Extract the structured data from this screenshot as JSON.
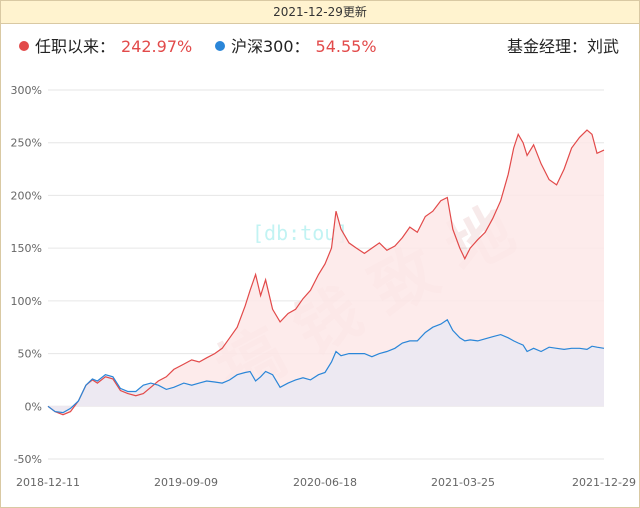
{
  "header": {
    "update_text": "2021-12-29更新"
  },
  "legend": {
    "series1_label": "任职以来：",
    "series1_value": "242.97%",
    "series2_label": "沪深300：",
    "series2_value": "54.55%",
    "manager_text": "基金经理：刘武"
  },
  "watermark": {
    "main": "搞 钱 致 地",
    "sub": "[db:tou]"
  },
  "colors": {
    "manager": "#e24a4a",
    "index": "#2a86d8",
    "manager_fill": "#fde8e8",
    "index_fill": "#ece9f2"
  },
  "chart_data": {
    "type": "line",
    "y_tick_labels": [
      "300%",
      "250%",
      "200%",
      "150%",
      "100%",
      "50%",
      "0%",
      "-50%"
    ],
    "y_ticks": [
      300,
      250,
      200,
      150,
      100,
      50,
      0,
      -50
    ],
    "ylim": [
      -50,
      300
    ],
    "x_tick_labels": [
      "2018-12-11",
      "2019-09-09",
      "2020-06-18",
      "2021-03-25",
      "2021-12-29"
    ],
    "grid": true,
    "series": [
      {
        "name": "任职以来",
        "color": "#e24a4a",
        "points": [
          [
            "2018-12-11",
            0
          ],
          [
            "2018-12-25",
            -5
          ],
          [
            "2019-01-10",
            -8
          ],
          [
            "2019-01-25",
            -5
          ],
          [
            "2019-02-10",
            5
          ],
          [
            "2019-02-25",
            20
          ],
          [
            "2019-03-10",
            25
          ],
          [
            "2019-03-20",
            22
          ],
          [
            "2019-04-05",
            28
          ],
          [
            "2019-04-20",
            26
          ],
          [
            "2019-05-05",
            15
          ],
          [
            "2019-05-20",
            12
          ],
          [
            "2019-06-05",
            10
          ],
          [
            "2019-06-20",
            12
          ],
          [
            "2019-07-05",
            18
          ],
          [
            "2019-07-20",
            24
          ],
          [
            "2019-08-05",
            28
          ],
          [
            "2019-08-20",
            35
          ],
          [
            "2019-09-09",
            40
          ],
          [
            "2019-09-25",
            44
          ],
          [
            "2019-10-10",
            42
          ],
          [
            "2019-10-25",
            46
          ],
          [
            "2019-11-10",
            50
          ],
          [
            "2019-11-25",
            55
          ],
          [
            "2019-12-10",
            65
          ],
          [
            "2019-12-25",
            75
          ],
          [
            "2020-01-10",
            95
          ],
          [
            "2020-01-20",
            110
          ],
          [
            "2020-01-31",
            125
          ],
          [
            "2020-02-10",
            105
          ],
          [
            "2020-02-20",
            120
          ],
          [
            "2020-03-05",
            92
          ],
          [
            "2020-03-20",
            80
          ],
          [
            "2020-04-05",
            88
          ],
          [
            "2020-04-20",
            92
          ],
          [
            "2020-05-05",
            102
          ],
          [
            "2020-05-20",
            110
          ],
          [
            "2020-06-05",
            125
          ],
          [
            "2020-06-18",
            135
          ],
          [
            "2020-07-01",
            150
          ],
          [
            "2020-07-10",
            185
          ],
          [
            "2020-07-20",
            168
          ],
          [
            "2020-08-05",
            155
          ],
          [
            "2020-08-20",
            150
          ],
          [
            "2020-09-05",
            145
          ],
          [
            "2020-09-20",
            150
          ],
          [
            "2020-10-05",
            155
          ],
          [
            "2020-10-20",
            148
          ],
          [
            "2020-11-05",
            152
          ],
          [
            "2020-11-20",
            160
          ],
          [
            "2020-12-05",
            170
          ],
          [
            "2020-12-20",
            165
          ],
          [
            "2021-01-05",
            180
          ],
          [
            "2021-01-20",
            185
          ],
          [
            "2021-02-05",
            195
          ],
          [
            "2021-02-18",
            198
          ],
          [
            "2021-03-01",
            168
          ],
          [
            "2021-03-15",
            150
          ],
          [
            "2021-03-25",
            140
          ],
          [
            "2021-04-05",
            150
          ],
          [
            "2021-04-20",
            158
          ],
          [
            "2021-05-05",
            165
          ],
          [
            "2021-05-20",
            178
          ],
          [
            "2021-06-05",
            195
          ],
          [
            "2021-06-20",
            220
          ],
          [
            "2021-07-01",
            245
          ],
          [
            "2021-07-10",
            258
          ],
          [
            "2021-07-20",
            250
          ],
          [
            "2021-07-28",
            238
          ],
          [
            "2021-08-10",
            248
          ],
          [
            "2021-08-25",
            230
          ],
          [
            "2021-09-10",
            215
          ],
          [
            "2021-09-25",
            210
          ],
          [
            "2021-10-10",
            225
          ],
          [
            "2021-10-25",
            245
          ],
          [
            "2021-11-10",
            255
          ],
          [
            "2021-11-25",
            262
          ],
          [
            "2021-12-05",
            258
          ],
          [
            "2021-12-15",
            240
          ],
          [
            "2021-12-29",
            243
          ]
        ]
      },
      {
        "name": "沪深300",
        "color": "#2a86d8",
        "points": [
          [
            "2018-12-11",
            0
          ],
          [
            "2018-12-25",
            -5
          ],
          [
            "2019-01-10",
            -6
          ],
          [
            "2019-01-25",
            -2
          ],
          [
            "2019-02-10",
            5
          ],
          [
            "2019-02-25",
            20
          ],
          [
            "2019-03-10",
            26
          ],
          [
            "2019-03-20",
            24
          ],
          [
            "2019-04-05",
            30
          ],
          [
            "2019-04-20",
            28
          ],
          [
            "2019-05-05",
            17
          ],
          [
            "2019-05-20",
            14
          ],
          [
            "2019-06-05",
            14
          ],
          [
            "2019-06-20",
            20
          ],
          [
            "2019-07-05",
            22
          ],
          [
            "2019-07-20",
            20
          ],
          [
            "2019-08-05",
            16
          ],
          [
            "2019-08-20",
            18
          ],
          [
            "2019-09-09",
            22
          ],
          [
            "2019-09-25",
            20
          ],
          [
            "2019-10-10",
            22
          ],
          [
            "2019-10-25",
            24
          ],
          [
            "2019-11-10",
            23
          ],
          [
            "2019-11-25",
            22
          ],
          [
            "2019-12-10",
            25
          ],
          [
            "2019-12-25",
            30
          ],
          [
            "2020-01-10",
            32
          ],
          [
            "2020-01-20",
            33
          ],
          [
            "2020-01-31",
            24
          ],
          [
            "2020-02-10",
            28
          ],
          [
            "2020-02-20",
            33
          ],
          [
            "2020-03-05",
            30
          ],
          [
            "2020-03-20",
            18
          ],
          [
            "2020-04-05",
            22
          ],
          [
            "2020-04-20",
            25
          ],
          [
            "2020-05-05",
            27
          ],
          [
            "2020-05-20",
            25
          ],
          [
            "2020-06-05",
            30
          ],
          [
            "2020-06-18",
            32
          ],
          [
            "2020-07-01",
            42
          ],
          [
            "2020-07-10",
            52
          ],
          [
            "2020-07-20",
            48
          ],
          [
            "2020-08-05",
            50
          ],
          [
            "2020-08-20",
            50
          ],
          [
            "2020-09-05",
            50
          ],
          [
            "2020-09-20",
            47
          ],
          [
            "2020-10-05",
            50
          ],
          [
            "2020-10-20",
            52
          ],
          [
            "2020-11-05",
            55
          ],
          [
            "2020-11-20",
            60
          ],
          [
            "2020-12-05",
            62
          ],
          [
            "2020-12-20",
            62
          ],
          [
            "2021-01-05",
            70
          ],
          [
            "2021-01-20",
            75
          ],
          [
            "2021-02-05",
            78
          ],
          [
            "2021-02-18",
            82
          ],
          [
            "2021-03-01",
            72
          ],
          [
            "2021-03-15",
            65
          ],
          [
            "2021-03-25",
            62
          ],
          [
            "2021-04-05",
            63
          ],
          [
            "2021-04-20",
            62
          ],
          [
            "2021-05-05",
            64
          ],
          [
            "2021-05-20",
            66
          ],
          [
            "2021-06-05",
            68
          ],
          [
            "2021-06-20",
            65
          ],
          [
            "2021-07-01",
            62
          ],
          [
            "2021-07-10",
            60
          ],
          [
            "2021-07-20",
            58
          ],
          [
            "2021-07-28",
            52
          ],
          [
            "2021-08-10",
            55
          ],
          [
            "2021-08-25",
            52
          ],
          [
            "2021-09-10",
            56
          ],
          [
            "2021-09-25",
            55
          ],
          [
            "2021-10-10",
            54
          ],
          [
            "2021-10-25",
            55
          ],
          [
            "2021-11-10",
            55
          ],
          [
            "2021-11-25",
            54
          ],
          [
            "2021-12-05",
            57
          ],
          [
            "2021-12-15",
            56
          ],
          [
            "2021-12-29",
            55
          ]
        ]
      }
    ]
  }
}
